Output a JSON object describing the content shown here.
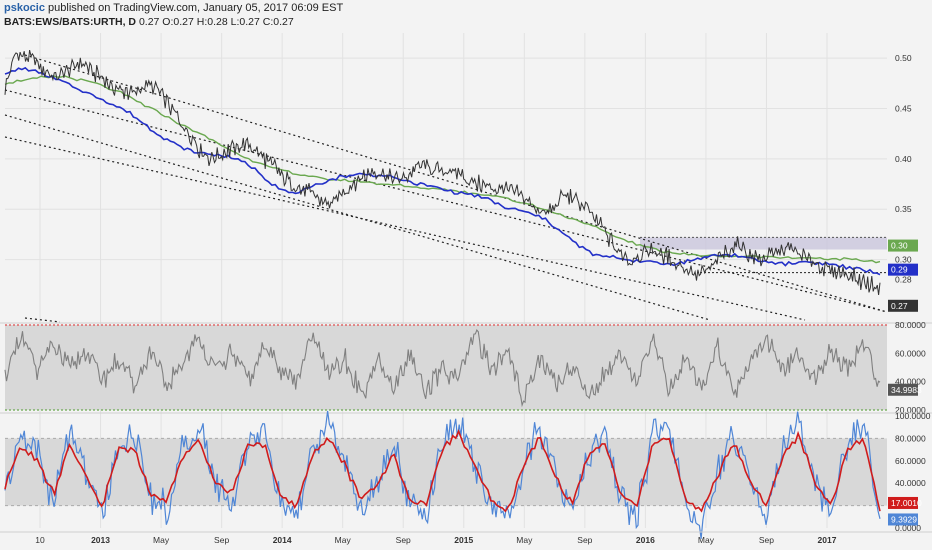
{
  "header": {
    "username": "pskocic",
    "published_text": " published on TradingView.com, January 05, 2017 06:09 EST",
    "symbol_line": "BATS:EWS/BATS:URTH, D",
    "ohlc": [
      {
        "label": "O:",
        "value": "0.27"
      },
      {
        "label": "H:",
        "value": "0.28"
      },
      {
        "label": "L:",
        "value": "0.27"
      },
      {
        "label": "C:",
        "value": "0.27"
      }
    ],
    "last_value": "0.27"
  },
  "colors": {
    "price": "#333333",
    "ma_fast": "#2330c8",
    "ma_slow": "#6aa84f",
    "rsi": "#808080",
    "stoch_k": "#4f86d6",
    "stoch_d": "#d01c1c",
    "channel": "#222222",
    "resistance_zone": "#c9c6dc",
    "bands": "#d8d8d8"
  },
  "chart_data": [
    {
      "type": "line",
      "panel": "price",
      "x_ticks": [
        "10",
        "2013",
        "May",
        "Sep",
        "2014",
        "May",
        "Sep",
        "2015",
        "May",
        "Sep",
        "2016",
        "May",
        "Sep",
        "2017"
      ],
      "y_ticks": [
        "0.50",
        "0.45",
        "0.40",
        "0.35",
        "0.30"
      ],
      "ylim": [
        0.24,
        0.525
      ],
      "series": [
        {
          "key": "price",
          "role": "price",
          "values": [
            0.47,
            0.505,
            0.5,
            0.495,
            0.485,
            0.48,
            0.49,
            0.495,
            0.488,
            0.48,
            0.47,
            0.468,
            0.465,
            0.475,
            0.47,
            0.455,
            0.44,
            0.425,
            0.41,
            0.4,
            0.405,
            0.41,
            0.415,
            0.41,
            0.4,
            0.392,
            0.38,
            0.37,
            0.368,
            0.36,
            0.355,
            0.362,
            0.375,
            0.382,
            0.388,
            0.385,
            0.378,
            0.38,
            0.39,
            0.393,
            0.388,
            0.39,
            0.385,
            0.378,
            0.375,
            0.372,
            0.37,
            0.368,
            0.362,
            0.352,
            0.345,
            0.355,
            0.365,
            0.358,
            0.35,
            0.335,
            0.32,
            0.305,
            0.3,
            0.308,
            0.31,
            0.305,
            0.298,
            0.292,
            0.285,
            0.29,
            0.3,
            0.31,
            0.315,
            0.305,
            0.298,
            0.305,
            0.312,
            0.31,
            0.302,
            0.295,
            0.29,
            0.288,
            0.285,
            0.28,
            0.275,
            0.27
          ]
        },
        {
          "key": "ma_fast",
          "role": "moving average",
          "values": [
            0.485,
            0.49,
            0.485,
            0.478,
            0.47,
            0.462,
            0.455,
            0.445,
            0.432,
            0.42,
            0.41,
            0.405,
            0.404,
            0.4,
            0.39,
            0.375,
            0.365,
            0.37,
            0.378,
            0.383,
            0.385,
            0.384,
            0.38,
            0.376,
            0.372,
            0.368,
            0.365,
            0.36,
            0.352,
            0.348,
            0.342,
            0.33,
            0.315,
            0.305,
            0.302,
            0.3,
            0.298,
            0.296,
            0.297,
            0.302,
            0.305,
            0.304,
            0.3,
            0.297,
            0.296,
            0.298,
            0.296,
            0.293,
            0.29,
            0.286
          ]
        },
        {
          "key": "ma_slow",
          "role": "moving average",
          "values": [
            0.475,
            0.48,
            0.482,
            0.476,
            0.465,
            0.45,
            0.435,
            0.42,
            0.405,
            0.392,
            0.385,
            0.38,
            0.378,
            0.375,
            0.372,
            0.37,
            0.366,
            0.362,
            0.355,
            0.345,
            0.335,
            0.322,
            0.312,
            0.306,
            0.304,
            0.303,
            0.303,
            0.302,
            0.301,
            0.3,
            0.298
          ]
        }
      ],
      "price_labels": [
        "0.30",
        "0.29",
        "0.28",
        "0.27"
      ]
    },
    {
      "type": "line",
      "panel": "rsi",
      "y_ticks": [
        "80.0000",
        "60.0000",
        "40.0000",
        "20.0000"
      ],
      "ylim": [
        20,
        80
      ],
      "last_value": "34.9983",
      "series": [
        {
          "key": "rsi",
          "role": "oscillator",
          "values": [
            45,
            70,
            50,
            65,
            48,
            62,
            42,
            55,
            38,
            60,
            35,
            55,
            70,
            48,
            60,
            40,
            65,
            50,
            40,
            72,
            45,
            55,
            30,
            55,
            35,
            60,
            30,
            50,
            40,
            75,
            48,
            60,
            28,
            58,
            38,
            52,
            30,
            45,
            62,
            40,
            70,
            35,
            55,
            38,
            65,
            32,
            55,
            72,
            45,
            58,
            42,
            62,
            50,
            68,
            35
          ]
        }
      ]
    },
    {
      "type": "line",
      "panel": "stochastic",
      "y_ticks": [
        "100.0000",
        "80.0000",
        "60.0000",
        "40.0000",
        "17.0010",
        "9.3929",
        "0.0000"
      ],
      "ylim": [
        0,
        100
      ],
      "last_values": {
        "k": "9.3929",
        "d": "17.0010"
      },
      "series": [
        {
          "key": "stoch_k",
          "role": "%K",
          "values": [
            30,
            85,
            70,
            20,
            90,
            50,
            10,
            75,
            85,
            30,
            15,
            70,
            90,
            40,
            20,
            80,
            88,
            25,
            10,
            70,
            92,
            60,
            15,
            40,
            75,
            20,
            10,
            80,
            95,
            60,
            20,
            5,
            60,
            90,
            50,
            15,
            70,
            85,
            30,
            10,
            85,
            90,
            20,
            5,
            50,
            85,
            45,
            10,
            70,
            95,
            40,
            15,
            80,
            90,
            9
          ]
        },
        {
          "key": "stoch_d",
          "role": "%D",
          "values": [
            35,
            75,
            60,
            30,
            75,
            45,
            20,
            70,
            70,
            30,
            25,
            65,
            78,
            40,
            30,
            75,
            75,
            30,
            20,
            65,
            80,
            55,
            25,
            40,
            65,
            25,
            20,
            72,
            85,
            55,
            25,
            15,
            55,
            80,
            45,
            20,
            65,
            78,
            30,
            20,
            75,
            80,
            25,
            15,
            48,
            78,
            40,
            20,
            65,
            82,
            40,
            20,
            70,
            78,
            17
          ]
        }
      ]
    }
  ]
}
